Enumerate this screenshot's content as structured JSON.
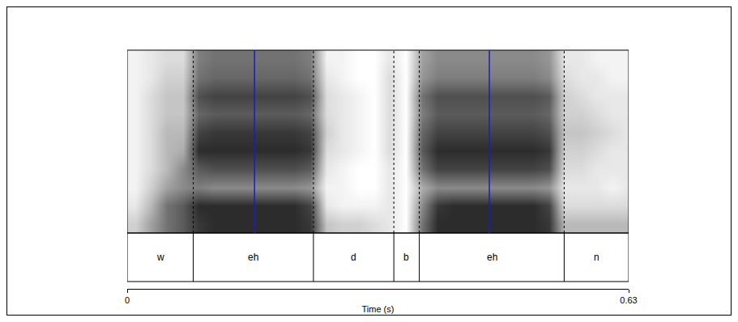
{
  "chart_data": {
    "type": "spectrogram",
    "xlabel": "Time (s)",
    "xlim": [
      0,
      0.63
    ],
    "xticks": [
      0,
      0.63
    ],
    "ylim": [
      0,
      5000
    ],
    "tick_labels": "x",
    "x": [
      0.01,
      0.03,
      0.05,
      0.07,
      0.09,
      0.11,
      0.13,
      0.15,
      0.17,
      0.19,
      0.21,
      0.23,
      0.25,
      0.27,
      0.29,
      0.31,
      0.33,
      0.35,
      0.37,
      0.39,
      0.41,
      0.43,
      0.45,
      0.47,
      0.49,
      0.51,
      0.53,
      0.55,
      0.57,
      0.59,
      0.61,
      0.63
    ],
    "y": [
      250,
      750,
      1250,
      1750,
      2250,
      2750,
      3250,
      3750,
      4250,
      4750
    ],
    "z": [
      [
        0.2,
        0.4,
        0.6,
        0.7,
        0.85,
        0.9,
        0.9,
        0.9,
        0.9,
        0.9,
        0.9,
        0.85,
        0.25,
        0.2,
        0.2,
        0.15,
        0.1,
        0,
        0.6,
        0.9,
        0.9,
        0.9,
        0.9,
        0.9,
        0.9,
        0.9,
        0.85,
        0.3,
        0.3,
        0.3,
        0.3,
        0.3
      ],
      [
        0.1,
        0.3,
        0.6,
        0.7,
        0.9,
        0.9,
        0.9,
        0.9,
        0.9,
        0.9,
        0.9,
        0.8,
        0.1,
        0.05,
        0.05,
        0.05,
        0.1,
        0,
        0.5,
        0.85,
        0.9,
        0.9,
        0.9,
        0.9,
        0.9,
        0.9,
        0.8,
        0.15,
        0.15,
        0.15,
        0.15,
        0.15
      ],
      [
        0.05,
        0.2,
        0.4,
        0.5,
        0.55,
        0.5,
        0.5,
        0.5,
        0.5,
        0.5,
        0.5,
        0.45,
        0.05,
        0.05,
        0,
        0,
        0.1,
        0,
        0.35,
        0.5,
        0.5,
        0.5,
        0.5,
        0.5,
        0.5,
        0.5,
        0.45,
        0.1,
        0.1,
        0.1,
        0.05,
        0.1
      ],
      [
        0.05,
        0.15,
        0.3,
        0.5,
        0.7,
        0.75,
        0.75,
        0.75,
        0.75,
        0.75,
        0.75,
        0.7,
        0.1,
        0.05,
        0,
        0,
        0.1,
        0,
        0.6,
        0.8,
        0.8,
        0.8,
        0.8,
        0.8,
        0.8,
        0.8,
        0.75,
        0.15,
        0.15,
        0.1,
        0.1,
        0.1
      ],
      [
        0.05,
        0.15,
        0.3,
        0.35,
        0.9,
        0.9,
        0.9,
        0.9,
        0.9,
        0.9,
        0.9,
        0.85,
        0.15,
        0.1,
        0.05,
        0,
        0.15,
        0,
        0.7,
        0.9,
        0.9,
        0.9,
        0.9,
        0.9,
        0.9,
        0.9,
        0.85,
        0.2,
        0.2,
        0.15,
        0.1,
        0.1
      ],
      [
        0.05,
        0.15,
        0.3,
        0.3,
        0.8,
        0.85,
        0.85,
        0.85,
        0.85,
        0.85,
        0.85,
        0.8,
        0.2,
        0.1,
        0.05,
        0,
        0.15,
        0,
        0.65,
        0.8,
        0.8,
        0.8,
        0.8,
        0.8,
        0.8,
        0.8,
        0.75,
        0.25,
        0.25,
        0.2,
        0.15,
        0.1
      ],
      [
        0.05,
        0.15,
        0.25,
        0.25,
        0.65,
        0.7,
        0.7,
        0.7,
        0.7,
        0.7,
        0.7,
        0.65,
        0.15,
        0.1,
        0.05,
        0,
        0.15,
        0,
        0.55,
        0.7,
        0.7,
        0.7,
        0.7,
        0.7,
        0.7,
        0.7,
        0.65,
        0.2,
        0.2,
        0.15,
        0.1,
        0.1
      ],
      [
        0.05,
        0.15,
        0.25,
        0.25,
        0.75,
        0.8,
        0.8,
        0.8,
        0.8,
        0.8,
        0.8,
        0.75,
        0.15,
        0.1,
        0.05,
        0,
        0.15,
        0,
        0.6,
        0.75,
        0.75,
        0.75,
        0.75,
        0.75,
        0.75,
        0.75,
        0.7,
        0.2,
        0.15,
        0.1,
        0.1,
        0.1
      ],
      [
        0.05,
        0.1,
        0.2,
        0.2,
        0.6,
        0.65,
        0.65,
        0.65,
        0.65,
        0.65,
        0.65,
        0.6,
        0.1,
        0.05,
        0,
        0,
        0.15,
        0,
        0.45,
        0.55,
        0.55,
        0.55,
        0.55,
        0.55,
        0.55,
        0.55,
        0.5,
        0.15,
        0.1,
        0.1,
        0.05,
        0.05
      ],
      [
        0.05,
        0.1,
        0.15,
        0.15,
        0.55,
        0.6,
        0.6,
        0.6,
        0.6,
        0.6,
        0.6,
        0.55,
        0.05,
        0.05,
        0,
        0,
        0.1,
        0,
        0.4,
        0.5,
        0.5,
        0.5,
        0.5,
        0.5,
        0.5,
        0.5,
        0.45,
        0.1,
        0.1,
        0.05,
        0.05,
        0.05
      ]
    ],
    "zlim": [
      0,
      1
    ],
    "segments": [
      {
        "label": "w",
        "start": 0,
        "end": 0.083
      },
      {
        "label": "eh",
        "start": 0.083,
        "end": 0.234
      },
      {
        "label": "d",
        "start": 0.234,
        "end": 0.335
      },
      {
        "label": "b",
        "start": 0.335,
        "end": 0.367
      },
      {
        "label": "eh",
        "start": 0.367,
        "end": 0.549
      },
      {
        "label": "n",
        "start": 0.549,
        "end": 0.63
      }
    ],
    "measurement_points": [
      0.16,
      0.455
    ]
  }
}
